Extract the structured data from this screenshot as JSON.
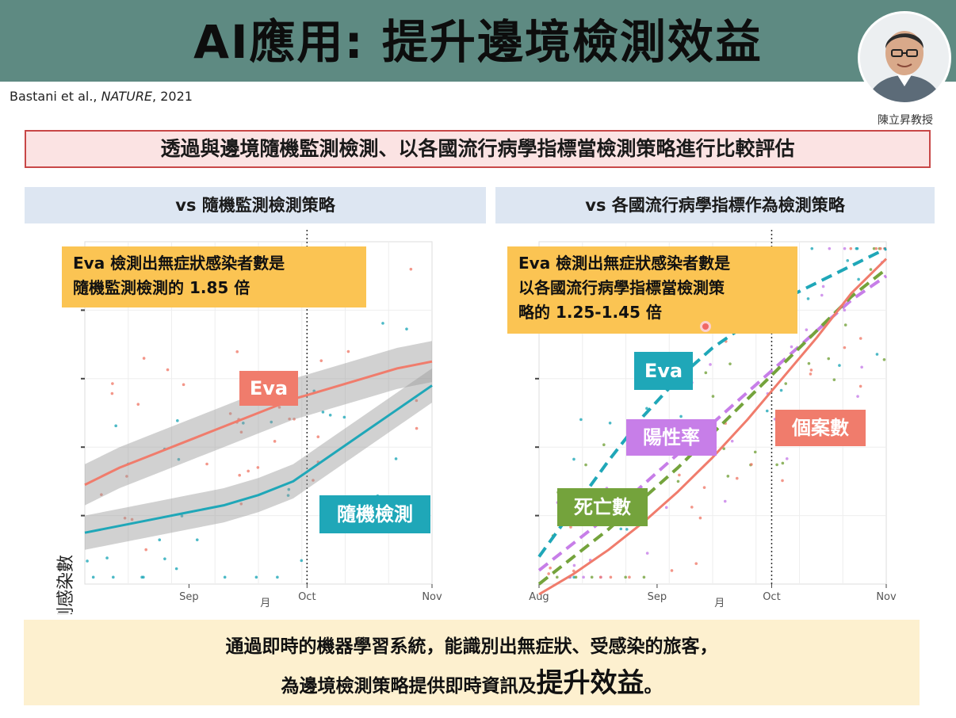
{
  "title": "AI應用: 提升邊境檢測效益",
  "citation": {
    "authors": "Bastani et al., ",
    "journal": "NATURE",
    "year": ", 2021"
  },
  "presenter": "陳立昇教授",
  "banner": "透過與邊境隨機監測檢測、以各國流行病學指標當檢測策略進行比較評估",
  "colors": {
    "header": "#5e8a82",
    "eva": "#f07c6c",
    "random": "#1fa7b8",
    "positive": "#c77ee8",
    "death": "#74a33c",
    "note": "#fbc453"
  },
  "left_panel": {
    "heading": "vs 隨機監測檢測策略",
    "note_lines": [
      "Eva 檢測出無症狀感染者數是",
      "隨機監測檢測的 1.85 倍"
    ],
    "tags": {
      "eva": "Eva",
      "random": "隨機檢測"
    }
  },
  "right_panel": {
    "heading": "vs 各國流行病學指標作為檢測策略",
    "note_lines": [
      "Eva 檢測出無症狀感染者數是",
      "以各國流行病學指標當檢測策",
      "略的 1.25-1.45 倍"
    ],
    "tags": {
      "eva": "Eva",
      "positive": "陽性率",
      "cases": "個案數",
      "death": "死亡數"
    }
  },
  "footer": {
    "line1": "通過即時的機器學習系統，能識別出無症狀、受感染的旅客，",
    "line2_a": "為邊境檢測策略提供即時資訊及",
    "line2_b": "提升效益",
    "line2_c": "。"
  },
  "chart_data": [
    {
      "type": "line",
      "ylabel": "檢測感染數",
      "xlabel": "月",
      "x_ticks": [
        "Sep",
        "Oct",
        "Nov"
      ],
      "x": [
        0,
        1,
        2,
        3,
        4,
        5,
        6,
        7,
        8,
        9,
        10
      ],
      "x_tick_index": {
        "Sep": 3.0,
        "Oct": 6.4,
        "Nov": 10
      },
      "ylim": [
        0,
        100
      ],
      "vline_at": "Oct",
      "grid": true,
      "series": [
        {
          "name": "Eva",
          "color": "#f07c6c",
          "values": [
            29,
            34,
            38,
            42,
            46,
            50,
            54,
            57,
            60,
            63,
            65
          ],
          "band": 6
        },
        {
          "name": "隨機檢測",
          "color": "#1fa7b8",
          "values": [
            15,
            17,
            19,
            21,
            23,
            26,
            30,
            37,
            44,
            51,
            58
          ],
          "band": 5
        }
      ]
    },
    {
      "type": "line",
      "xlabel": "月",
      "x_ticks": [
        "Aug",
        "Sep",
        "Oct",
        "Nov"
      ],
      "x": [
        0,
        1,
        2,
        3,
        4,
        5,
        6,
        7,
        8,
        9,
        10
      ],
      "x_tick_index": {
        "Aug": 0,
        "Sep": 3.4,
        "Oct": 6.7,
        "Nov": 10
      },
      "ylim": [
        0,
        100
      ],
      "vline_at": "Oct",
      "grid": true,
      "series": [
        {
          "name": "Eva",
          "color": "#1fa7b8",
          "dashed": true,
          "values": [
            8,
            22,
            36,
            49,
            60,
            69,
            76,
            83,
            88,
            93,
            98
          ]
        },
        {
          "name": "陽性率",
          "color": "#c77ee8",
          "dashed": true,
          "values": [
            4,
            12,
            20,
            29,
            38,
            47,
            56,
            65,
            74,
            83,
            90
          ]
        },
        {
          "name": "死亡數",
          "color": "#74a33c",
          "dashed": true,
          "values": [
            0,
            8,
            16,
            25,
            34,
            44,
            54,
            64,
            74,
            84,
            92
          ]
        },
        {
          "name": "個案數",
          "color": "#f07c6c",
          "dashed": false,
          "values": [
            -3,
            3,
            10,
            18,
            27,
            37,
            48,
            60,
            72,
            85,
            95
          ]
        }
      ]
    }
  ]
}
